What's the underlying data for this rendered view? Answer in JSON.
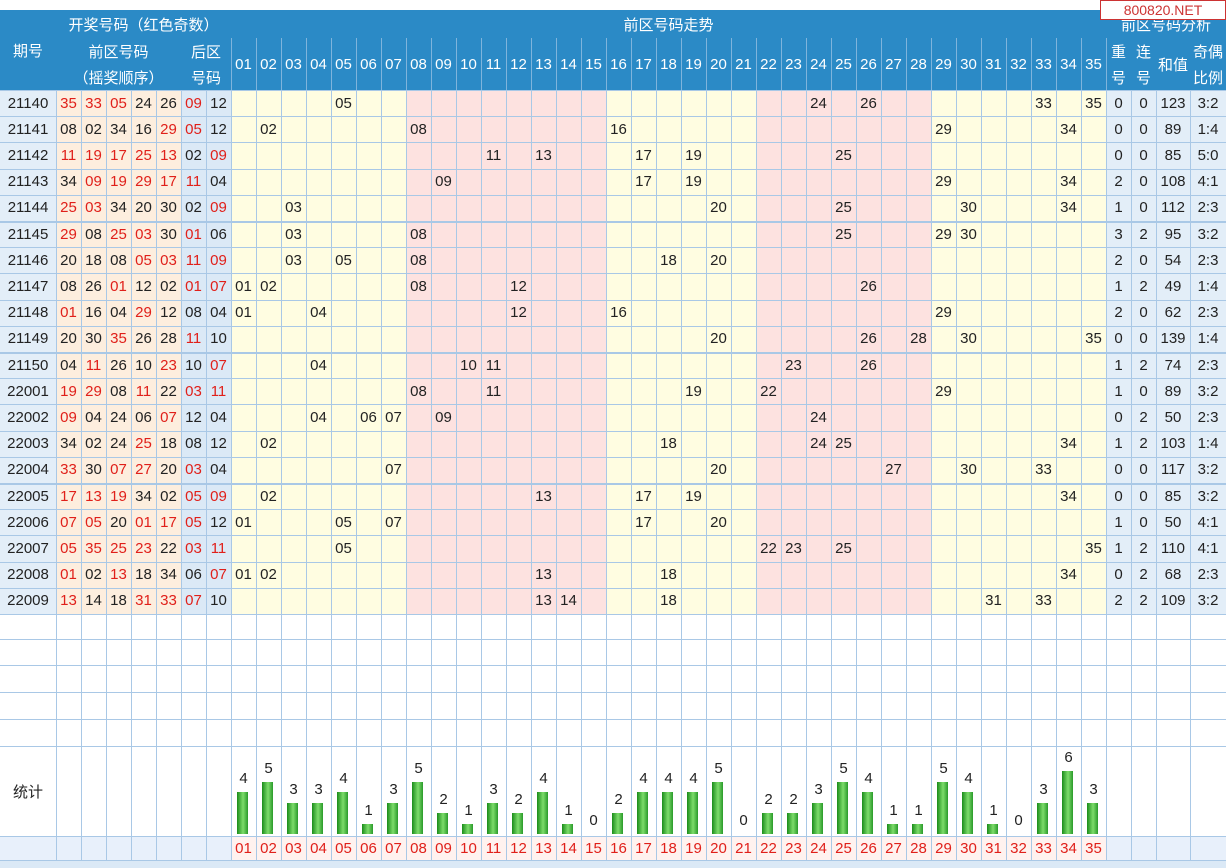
{
  "header": {
    "period": "期号",
    "draw_group": "开奖号码（红色奇数）",
    "front_order_1": "前区号码",
    "front_order_2": "（摇奖顺序）",
    "back_1": "后区",
    "back_2": "号码",
    "trend": "前区号码走势",
    "analysis": "前区号码分析",
    "repeat_1": "重",
    "repeat_2": "号",
    "consec_1": "连",
    "consec_2": "号",
    "sum": "和值",
    "oddeven_1": "奇偶",
    "oddeven_2": "比例",
    "stats": "统计"
  },
  "watermark": "800820.NET",
  "colors": {
    "header": "#2b8ac6",
    "odd_red": "#e0201a",
    "zone_yellow": "#fffde1",
    "zone_pink": "#fde2e0",
    "bar_green": "#2ea82e"
  },
  "chart_data": {
    "type": "bar",
    "categories": [
      "01",
      "02",
      "03",
      "04",
      "05",
      "06",
      "07",
      "08",
      "09",
      "10",
      "11",
      "12",
      "13",
      "14",
      "15",
      "16",
      "17",
      "18",
      "19",
      "20",
      "21",
      "22",
      "23",
      "24",
      "25",
      "26",
      "27",
      "28",
      "29",
      "30",
      "31",
      "32",
      "33",
      "34",
      "35"
    ],
    "values": [
      4,
      5,
      3,
      3,
      4,
      1,
      3,
      5,
      2,
      1,
      3,
      2,
      4,
      1,
      0,
      2,
      4,
      4,
      4,
      5,
      0,
      2,
      2,
      3,
      5,
      4,
      1,
      1,
      5,
      4,
      1,
      0,
      3,
      6,
      3
    ]
  },
  "rows": [
    {
      "p": "21140",
      "f": [
        "35",
        "33",
        "05",
        "24",
        "26"
      ],
      "b": [
        "09",
        "12"
      ],
      "rep": "0",
      "con": "0",
      "sum": "123",
      "oe": "3:2"
    },
    {
      "p": "21141",
      "f": [
        "08",
        "02",
        "34",
        "16",
        "29"
      ],
      "b": [
        "05",
        "12"
      ],
      "rep": "0",
      "con": "0",
      "sum": "89",
      "oe": "1:4"
    },
    {
      "p": "21142",
      "f": [
        "11",
        "19",
        "17",
        "25",
        "13"
      ],
      "b": [
        "02",
        "09"
      ],
      "rep": "0",
      "con": "0",
      "sum": "85",
      "oe": "5:0"
    },
    {
      "p": "21143",
      "f": [
        "34",
        "09",
        "19",
        "29",
        "17"
      ],
      "b": [
        "11",
        "04"
      ],
      "rep": "2",
      "con": "0",
      "sum": "108",
      "oe": "4:1"
    },
    {
      "p": "21144",
      "f": [
        "25",
        "03",
        "34",
        "20",
        "30"
      ],
      "b": [
        "02",
        "09"
      ],
      "rep": "1",
      "con": "0",
      "sum": "112",
      "oe": "2:3"
    },
    {
      "p": "21145",
      "f": [
        "29",
        "08",
        "25",
        "03",
        "30"
      ],
      "b": [
        "01",
        "06"
      ],
      "rep": "3",
      "con": "2",
      "sum": "95",
      "oe": "3:2"
    },
    {
      "p": "21146",
      "f": [
        "20",
        "18",
        "08",
        "05",
        "03"
      ],
      "b": [
        "11",
        "09"
      ],
      "rep": "2",
      "con": "0",
      "sum": "54",
      "oe": "2:3"
    },
    {
      "p": "21147",
      "f": [
        "08",
        "26",
        "01",
        "12",
        "02"
      ],
      "b": [
        "01",
        "07"
      ],
      "rep": "1",
      "con": "2",
      "sum": "49",
      "oe": "1:4"
    },
    {
      "p": "21148",
      "f": [
        "01",
        "16",
        "04",
        "29",
        "12"
      ],
      "b": [
        "08",
        "04"
      ],
      "rep": "2",
      "con": "0",
      "sum": "62",
      "oe": "2:3"
    },
    {
      "p": "21149",
      "f": [
        "20",
        "30",
        "35",
        "26",
        "28"
      ],
      "b": [
        "11",
        "10"
      ],
      "rep": "0",
      "con": "0",
      "sum": "139",
      "oe": "1:4"
    },
    {
      "p": "21150",
      "f": [
        "04",
        "11",
        "26",
        "10",
        "23"
      ],
      "b": [
        "10",
        "07"
      ],
      "rep": "1",
      "con": "2",
      "sum": "74",
      "oe": "2:3"
    },
    {
      "p": "22001",
      "f": [
        "19",
        "29",
        "08",
        "11",
        "22"
      ],
      "b": [
        "03",
        "11"
      ],
      "rep": "1",
      "con": "0",
      "sum": "89",
      "oe": "3:2"
    },
    {
      "p": "22002",
      "f": [
        "09",
        "04",
        "24",
        "06",
        "07"
      ],
      "b": [
        "12",
        "04"
      ],
      "rep": "0",
      "con": "2",
      "sum": "50",
      "oe": "2:3"
    },
    {
      "p": "22003",
      "f": [
        "34",
        "02",
        "24",
        "25",
        "18"
      ],
      "b": [
        "08",
        "12"
      ],
      "rep": "1",
      "con": "2",
      "sum": "103",
      "oe": "1:4"
    },
    {
      "p": "22004",
      "f": [
        "33",
        "30",
        "07",
        "27",
        "20"
      ],
      "b": [
        "03",
        "04"
      ],
      "rep": "0",
      "con": "0",
      "sum": "117",
      "oe": "3:2"
    },
    {
      "p": "22005",
      "f": [
        "17",
        "13",
        "19",
        "34",
        "02"
      ],
      "b": [
        "05",
        "09"
      ],
      "rep": "0",
      "con": "0",
      "sum": "85",
      "oe": "3:2"
    },
    {
      "p": "22006",
      "f": [
        "07",
        "05",
        "20",
        "01",
        "17"
      ],
      "b": [
        "05",
        "12"
      ],
      "rep": "1",
      "con": "0",
      "sum": "50",
      "oe": "4:1"
    },
    {
      "p": "22007",
      "f": [
        "05",
        "35",
        "25",
        "23",
        "22"
      ],
      "b": [
        "03",
        "11"
      ],
      "rep": "1",
      "con": "2",
      "sum": "110",
      "oe": "4:1"
    },
    {
      "p": "22008",
      "f": [
        "01",
        "02",
        "13",
        "18",
        "34"
      ],
      "b": [
        "06",
        "07"
      ],
      "rep": "0",
      "con": "2",
      "sum": "68",
      "oe": "2:3"
    },
    {
      "p": "22009",
      "f": [
        "13",
        "14",
        "18",
        "31",
        "33"
      ],
      "b": [
        "07",
        "10"
      ],
      "rep": "2",
      "con": "2",
      "sum": "109",
      "oe": "3:2"
    }
  ]
}
